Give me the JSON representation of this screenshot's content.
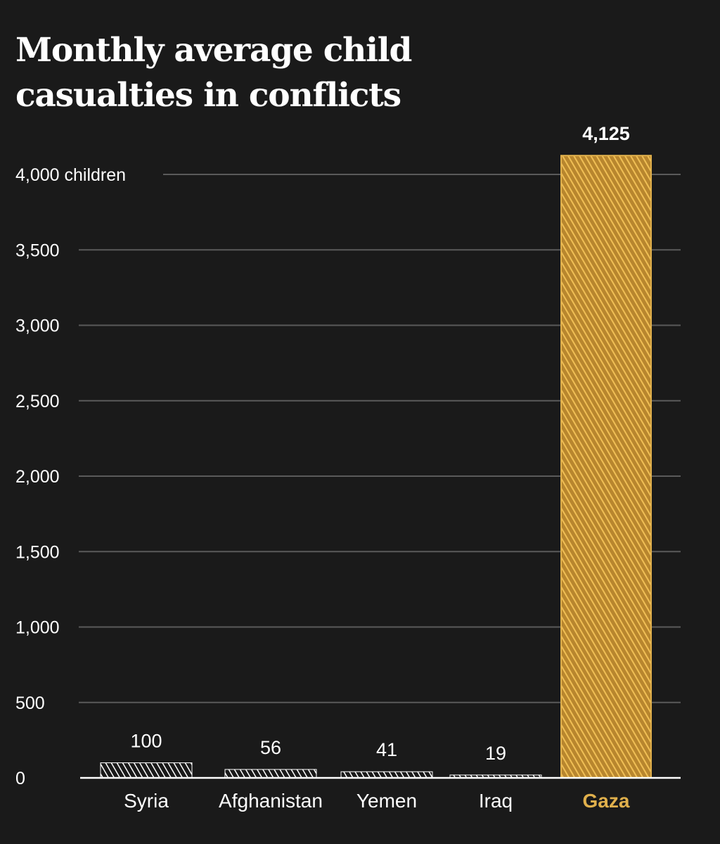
{
  "chart_data": {
    "type": "bar",
    "title": "Monthly average child casualties in conflicts",
    "y_unit": "children",
    "ylim": [
      0,
      4000
    ],
    "y_ticks": [
      0,
      500,
      1000,
      1500,
      2000,
      2500,
      3000,
      3500,
      4000
    ],
    "y_tick_labels": [
      "0",
      "500",
      "1,000",
      "1,500",
      "2,000",
      "2,500",
      "3,000",
      "3,500",
      "4,000 children"
    ],
    "categories": [
      "Syria",
      "Afghanistan",
      "Yemen",
      "Iraq",
      "Gaza"
    ],
    "values": [
      100,
      56,
      41,
      19,
      4125
    ],
    "value_labels": [
      "100",
      "56",
      "41",
      "19",
      "4,125"
    ],
    "highlight": "Gaza",
    "colors": {
      "background": "#1a1a1a",
      "bar": "#ffffff",
      "highlight": "#e0b04c",
      "gridline": "#5a5a5a",
      "text": "#ffffff"
    }
  }
}
